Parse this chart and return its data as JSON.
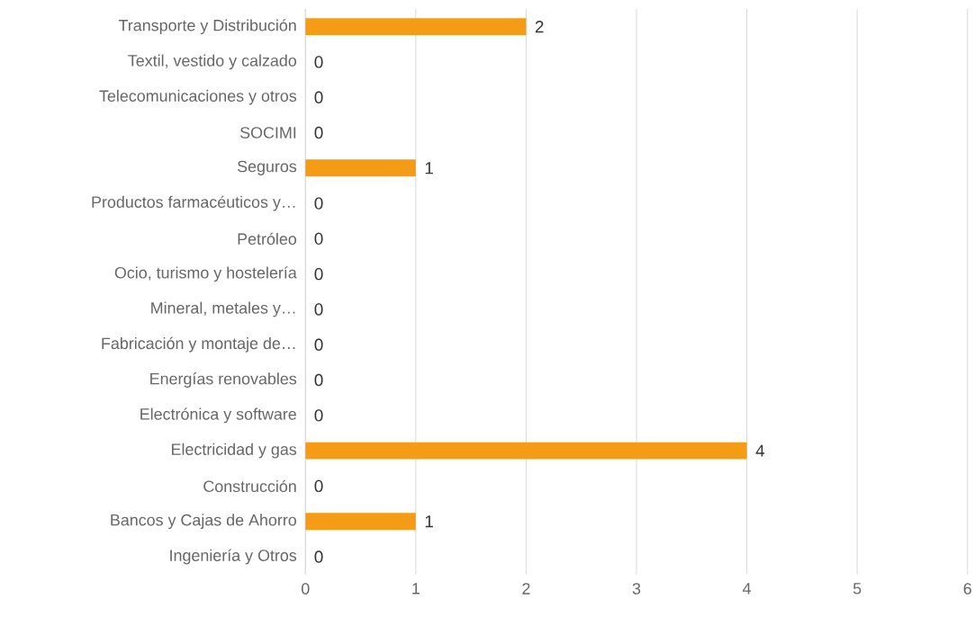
{
  "chart_data": {
    "type": "bar",
    "orientation": "horizontal",
    "categories": [
      "Transporte y Distribución",
      "Textil, vestido y calzado",
      "Telecomunicaciones y otros",
      "SOCIMI",
      "Seguros",
      "Productos farmacéuticos y…",
      "Petróleo",
      "Ocio, turismo y hostelería",
      "Mineral, metales y…",
      "Fabricación y montaje de…",
      "Energías renovables",
      "Electrónica y software",
      "Electricidad y gas",
      "Construcción",
      "Bancos y  Cajas de Ahorro",
      "Ingeniería y Otros"
    ],
    "values": [
      2,
      0,
      0,
      0,
      1,
      0,
      0,
      0,
      0,
      0,
      0,
      0,
      4,
      0,
      1,
      0
    ],
    "color": "#f59c16",
    "xlim": [
      0,
      6
    ],
    "xticks": [
      0,
      1,
      2,
      3,
      4,
      5,
      6
    ],
    "grid": "x",
    "data_labels": true
  }
}
